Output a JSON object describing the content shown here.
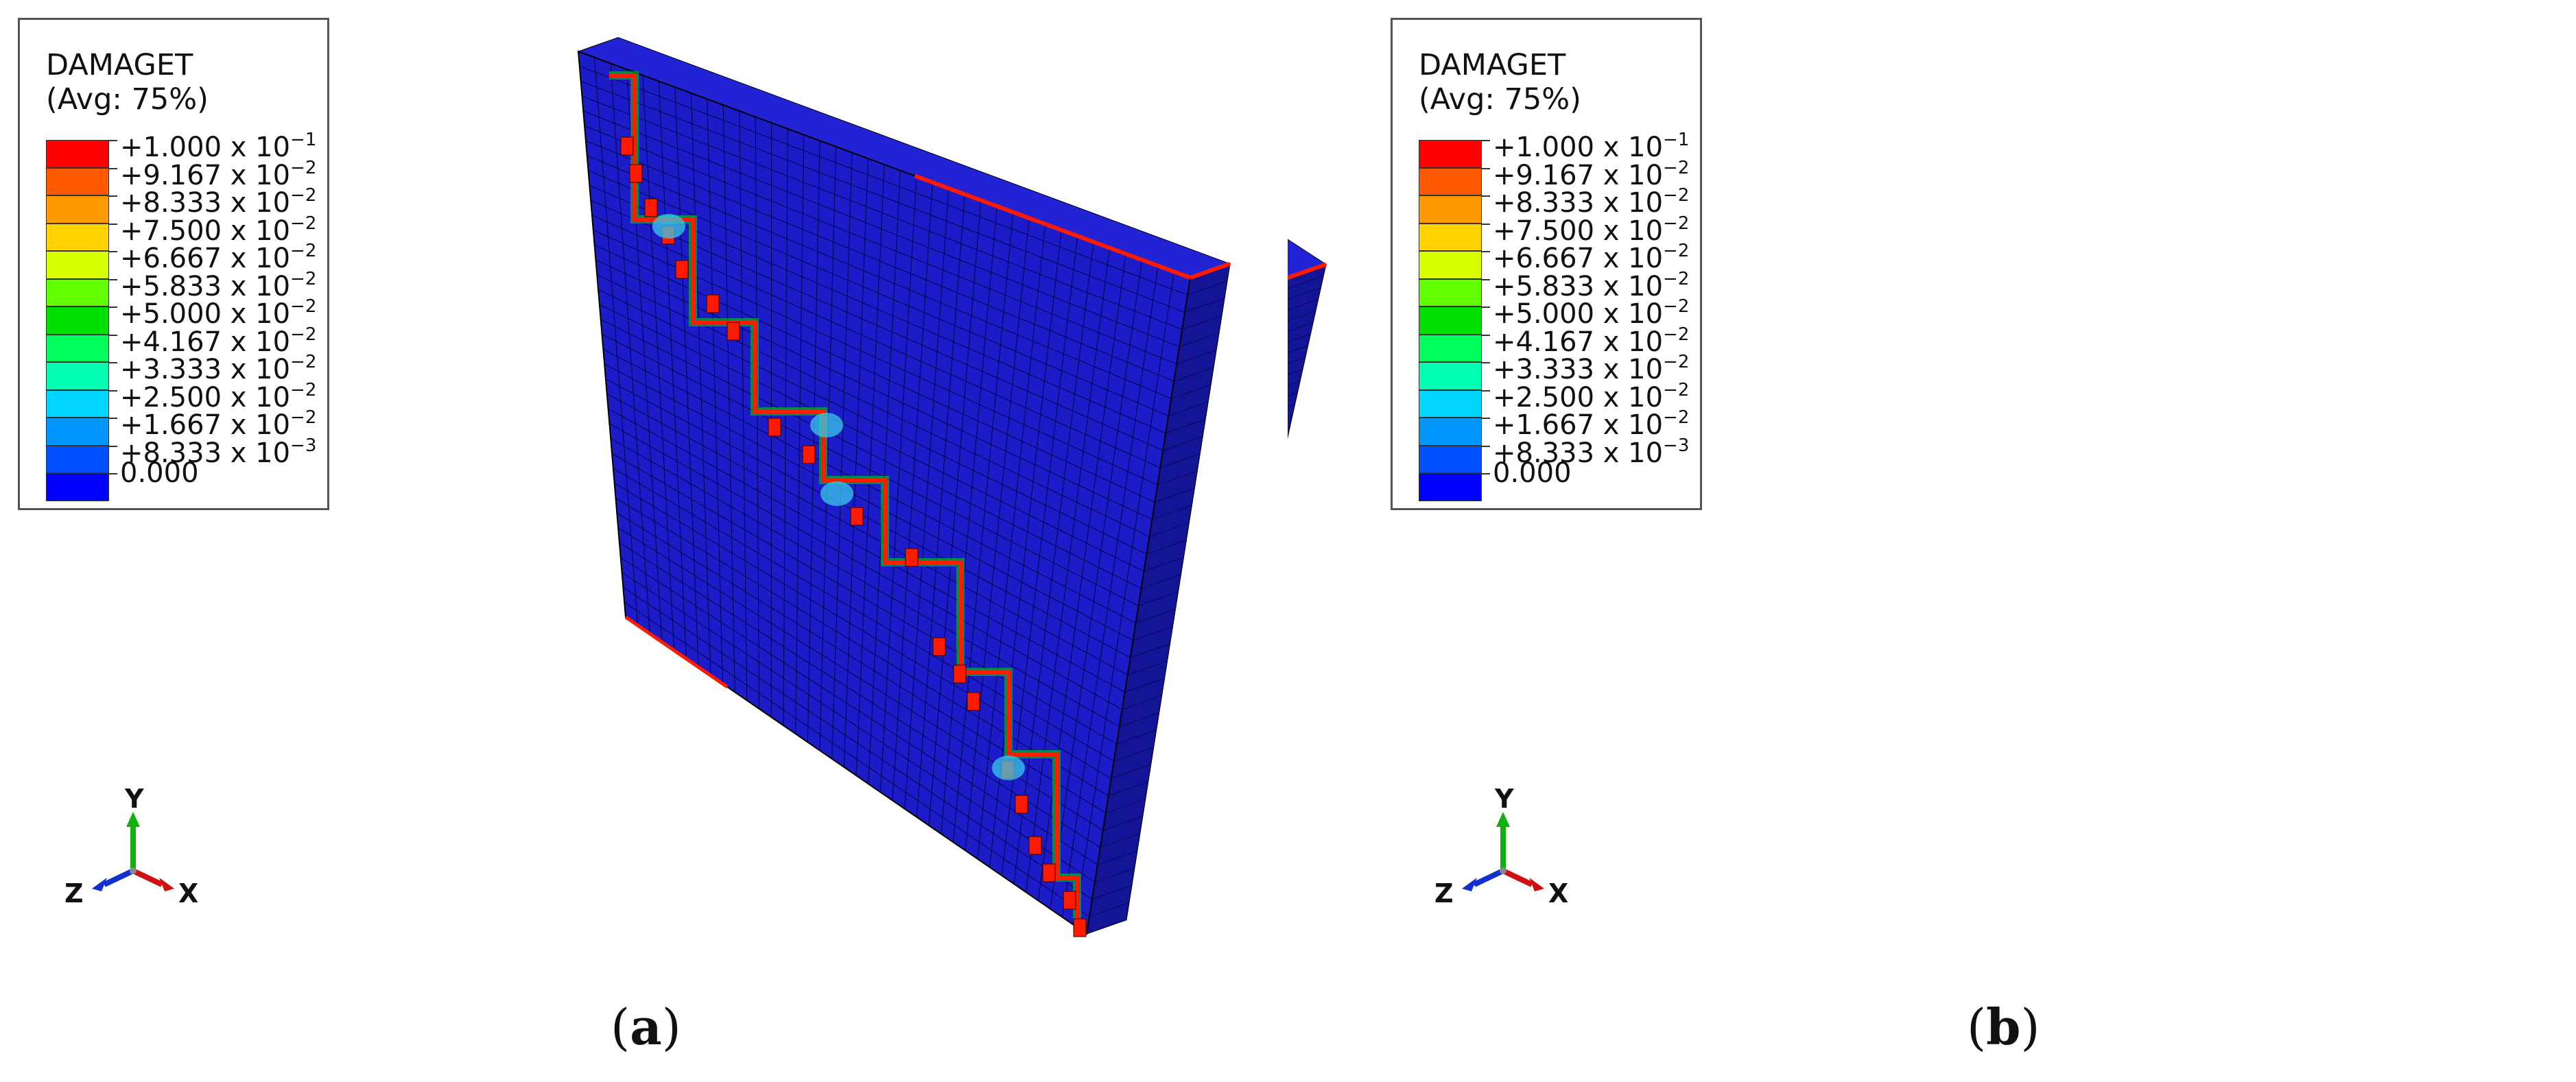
{
  "panels": [
    {
      "caption_letter": "a",
      "legend": {
        "title": "DAMAGET",
        "subtitle": "(Avg: 75%)",
        "entries": [
          {
            "mant": "+1.000 x 10",
            "exp": "−1"
          },
          {
            "mant": "+9.167 x 10",
            "exp": "−2"
          },
          {
            "mant": "+8.333 x 10",
            "exp": "−2"
          },
          {
            "mant": "+7.500 x 10",
            "exp": "−2"
          },
          {
            "mant": "+6.667 x 10",
            "exp": "−2"
          },
          {
            "mant": "+5.833 x 10",
            "exp": "−2"
          },
          {
            "mant": "+5.000 x 10",
            "exp": "−2"
          },
          {
            "mant": "+4.167 x 10",
            "exp": "−2"
          },
          {
            "mant": "+3.333 x 10",
            "exp": "−2"
          },
          {
            "mant": "+2.500 x 10",
            "exp": "−2"
          },
          {
            "mant": "+1.667 x 10",
            "exp": "−2"
          },
          {
            "mant": "+8.333 x 10",
            "exp": "−3"
          },
          {
            "mant": "0.000",
            "exp": ""
          }
        ]
      },
      "axes": {
        "y": "Y",
        "z": "Z",
        "x": "X"
      }
    },
    {
      "caption_letter": "b",
      "legend": {
        "title": "DAMAGET",
        "subtitle": "(Avg: 75%)",
        "entries": [
          {
            "mant": "+1.000 x 10",
            "exp": "−1"
          },
          {
            "mant": "+9.167 x 10",
            "exp": "−2"
          },
          {
            "mant": "+8.333 x 10",
            "exp": "−2"
          },
          {
            "mant": "+7.500 x 10",
            "exp": "−2"
          },
          {
            "mant": "+6.667 x 10",
            "exp": "−2"
          },
          {
            "mant": "+5.833 x 10",
            "exp": "−2"
          },
          {
            "mant": "+5.000 x 10",
            "exp": "−2"
          },
          {
            "mant": "+4.167 x 10",
            "exp": "−2"
          },
          {
            "mant": "+3.333 x 10",
            "exp": "−2"
          },
          {
            "mant": "+2.500 x 10",
            "exp": "−2"
          },
          {
            "mant": "+1.667 x 10",
            "exp": "−2"
          },
          {
            "mant": "+8.333 x 10",
            "exp": "−3"
          },
          {
            "mant": "0.000",
            "exp": ""
          }
        ]
      },
      "axes": {
        "y": "Y",
        "z": "Z",
        "x": "X"
      }
    }
  ],
  "colors": {
    "scale": [
      "#ff0000",
      "#ff5a00",
      "#ff9a00",
      "#ffd200",
      "#d6ff00",
      "#62ff00",
      "#00e000",
      "#00ff5c",
      "#00ffb0",
      "#00d6ff",
      "#0096ff",
      "#0050ff",
      "#0000ff"
    ],
    "model_face": "#1c1cc8",
    "model_side": "#141496",
    "model_top": "#2323d6",
    "crack": "#ff1a00",
    "axis_x": "#d01010",
    "axis_y": "#10b010",
    "axis_z": "#1030d0"
  }
}
